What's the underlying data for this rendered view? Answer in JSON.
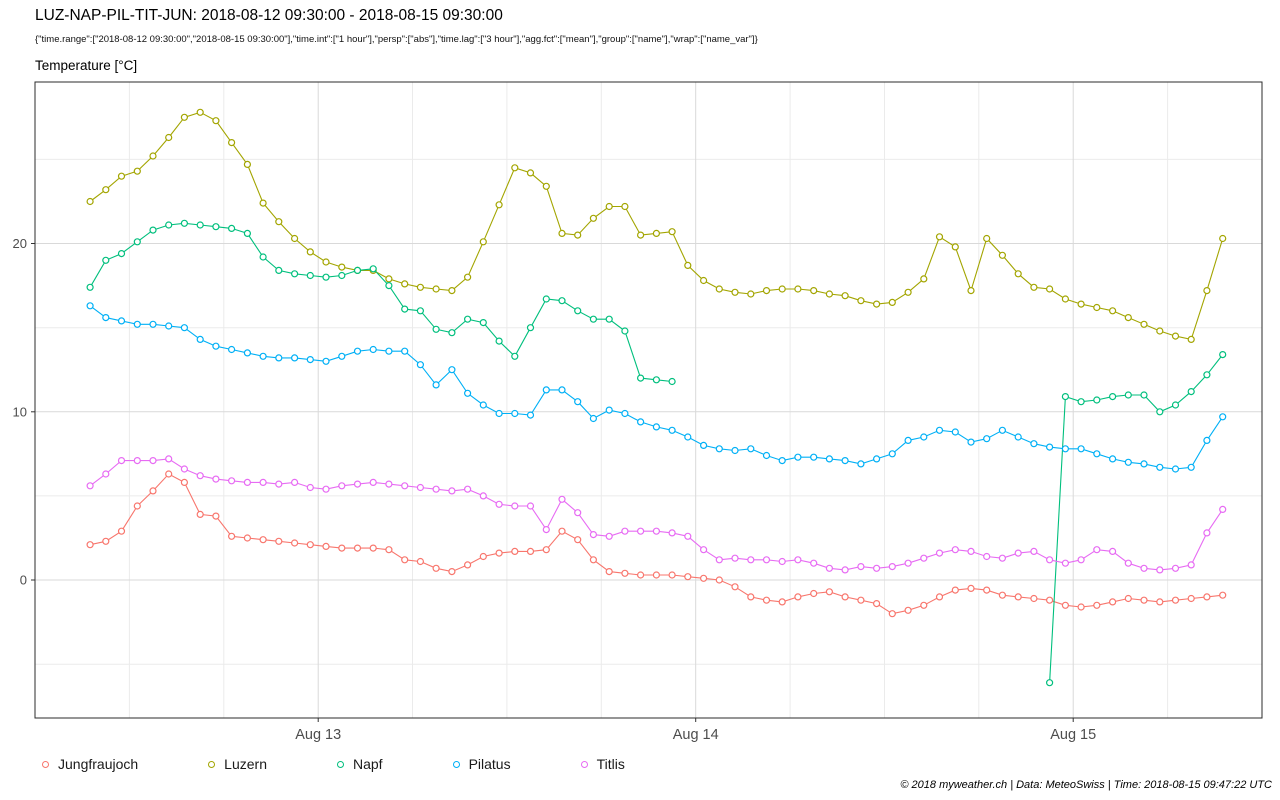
{
  "header": {
    "title": "LUZ-NAP-PIL-TIT-JUN: 2018-08-12 09:30:00 - 2018-08-15 09:30:00",
    "subtitle": "{\"time.range\":[\"2018-08-12 09:30:00\",\"2018-08-15 09:30:00\"],\"time.int\":[\"1 hour\"],\"persp\":[\"abs\"],\"time.lag\":[\"3 hour\"],\"agg.fct\":[\"mean\"],\"group\":[\"name\"],\"wrap\":[\"name_var\"]}"
  },
  "footer": "© 2018 myweather.ch | Data: MeteoSwiss | Time: 2018-08-15 09:47:22 UTC",
  "chart_data": {
    "type": "line",
    "title": "LUZ-NAP-PIL-TIT-JUN: 2018-08-12 09:30:00 - 2018-08-15 09:30:00",
    "ylabel": "Temperature [°C]",
    "x_unit": "hours since 2018-08-12 09:30",
    "x_range": [
      -3.5,
      74.5
    ],
    "y_range": [
      -8.2,
      29.6
    ],
    "grid": true,
    "legend_position": "bottom",
    "grid_major_color": "#d9d9d9",
    "grid_minor_color": "#ebebeb",
    "x_ticks": [
      {
        "hour": 14.5,
        "label": "Aug 13"
      },
      {
        "hour": 38.5,
        "label": "Aug 14"
      },
      {
        "hour": 62.5,
        "label": "Aug 15"
      }
    ],
    "x_minor_hours": [
      2.5,
      8.5,
      20.5,
      26.5,
      32.5,
      44.5,
      50.5,
      56.5,
      68.5
    ],
    "y_ticks": [
      {
        "value": 0,
        "label": "0"
      },
      {
        "value": 10,
        "label": "10"
      },
      {
        "value": 20,
        "label": "20"
      }
    ],
    "y_minor": [
      -5,
      5,
      15,
      25
    ],
    "marker": "open-circle",
    "series": [
      {
        "id": "jungfraujoch",
        "name": "Jungfraujoch",
        "color": "#F8766D",
        "values": [
          2.1,
          2.3,
          2.9,
          4.4,
          5.3,
          6.3,
          5.8,
          3.9,
          3.8,
          2.6,
          2.5,
          2.4,
          2.3,
          2.2,
          2.1,
          2.0,
          1.9,
          1.9,
          1.9,
          1.8,
          1.2,
          1.1,
          0.7,
          0.5,
          0.9,
          1.4,
          1.6,
          1.7,
          1.7,
          1.8,
          2.9,
          2.4,
          1.2,
          0.5,
          0.4,
          0.3,
          0.3,
          0.3,
          0.2,
          0.1,
          0.0,
          -0.4,
          -1.0,
          -1.2,
          -1.3,
          -1.0,
          -0.8,
          -0.7,
          -1.0,
          -1.2,
          -1.4,
          -2.0,
          -1.8,
          -1.5,
          -1.0,
          -0.6,
          -0.5,
          -0.6,
          -0.9,
          -1.0,
          -1.1,
          -1.2,
          -1.5,
          -1.6,
          -1.5,
          -1.3,
          -1.1,
          -1.2,
          -1.3,
          -1.2,
          -1.1,
          -1.0,
          -0.9
        ]
      },
      {
        "id": "luzern",
        "name": "Luzern",
        "color": "#A3A500",
        "values": [
          22.5,
          23.2,
          24.0,
          24.3,
          25.2,
          26.3,
          27.5,
          27.8,
          27.3,
          26.0,
          24.7,
          22.4,
          21.3,
          20.3,
          19.5,
          18.9,
          18.6,
          18.4,
          18.4,
          17.9,
          17.6,
          17.4,
          17.3,
          17.2,
          18.0,
          20.1,
          22.3,
          24.5,
          24.2,
          23.4,
          20.6,
          20.5,
          21.5,
          22.2,
          22.2,
          20.5,
          20.6,
          20.7,
          18.7,
          17.8,
          17.3,
          17.1,
          17.0,
          17.2,
          17.3,
          17.3,
          17.2,
          17.0,
          16.9,
          16.6,
          16.4,
          16.5,
          17.1,
          17.9,
          20.4,
          19.8,
          17.2,
          20.3,
          19.3,
          18.2,
          17.4,
          17.3,
          16.7,
          16.4,
          16.2,
          16.0,
          15.6,
          15.2,
          14.8,
          14.5,
          14.3,
          17.2,
          20.3
        ]
      },
      {
        "id": "napf",
        "name": "Napf",
        "color": "#00BF7D",
        "values": [
          17.4,
          19.0,
          19.4,
          20.1,
          20.8,
          21.1,
          21.2,
          21.1,
          21.0,
          20.9,
          20.6,
          19.2,
          18.4,
          18.2,
          18.1,
          18.0,
          18.1,
          18.4,
          18.5,
          17.5,
          16.1,
          16.0,
          14.9,
          14.7,
          15.5,
          15.3,
          14.2,
          13.3,
          15.0,
          16.7,
          16.6,
          16.0,
          15.5,
          15.5,
          14.8,
          12.0,
          11.9,
          11.8,
          null,
          null,
          null,
          null,
          null,
          null,
          null,
          null,
          null,
          null,
          null,
          null,
          null,
          null,
          null,
          null,
          null,
          null,
          null,
          null,
          null,
          null,
          null,
          -6.1,
          10.9,
          10.6,
          10.7,
          10.9,
          11.0,
          11.0,
          10.0,
          10.4,
          11.2,
          12.2,
          13.4
        ]
      },
      {
        "id": "pilatus",
        "name": "Pilatus",
        "color": "#00B0F6",
        "values": [
          16.3,
          15.6,
          15.4,
          15.2,
          15.2,
          15.1,
          15.0,
          14.3,
          13.9,
          13.7,
          13.5,
          13.3,
          13.2,
          13.2,
          13.1,
          13.0,
          13.3,
          13.6,
          13.7,
          13.6,
          13.6,
          12.8,
          11.6,
          12.5,
          11.1,
          10.4,
          9.9,
          9.9,
          9.8,
          11.3,
          11.3,
          10.6,
          9.6,
          10.1,
          9.9,
          9.4,
          9.1,
          8.9,
          8.5,
          8.0,
          7.8,
          7.7,
          7.8,
          7.4,
          7.1,
          7.3,
          7.3,
          7.2,
          7.1,
          6.9,
          7.2,
          7.5,
          8.3,
          8.5,
          8.9,
          8.8,
          8.2,
          8.4,
          8.9,
          8.5,
          8.1,
          7.9,
          7.8,
          7.8,
          7.5,
          7.2,
          7.0,
          6.9,
          6.7,
          6.6,
          6.7,
          8.3,
          9.7
        ]
      },
      {
        "id": "titlis",
        "name": "Titlis",
        "color": "#E76BF3",
        "values": [
          5.6,
          6.3,
          7.1,
          7.1,
          7.1,
          7.2,
          6.6,
          6.2,
          6.0,
          5.9,
          5.8,
          5.8,
          5.7,
          5.8,
          5.5,
          5.4,
          5.6,
          5.7,
          5.8,
          5.7,
          5.6,
          5.5,
          5.4,
          5.3,
          5.4,
          5.0,
          4.5,
          4.4,
          4.4,
          3.0,
          4.8,
          4.0,
          2.7,
          2.6,
          2.9,
          2.9,
          2.9,
          2.8,
          2.6,
          1.8,
          1.2,
          1.3,
          1.2,
          1.2,
          1.1,
          1.2,
          1.0,
          0.7,
          0.6,
          0.8,
          0.7,
          0.8,
          1.0,
          1.3,
          1.6,
          1.8,
          1.7,
          1.4,
          1.3,
          1.6,
          1.7,
          1.2,
          1.0,
          1.2,
          1.8,
          1.7,
          1.0,
          0.7,
          0.6,
          0.7,
          0.9,
          2.8,
          4.2
        ]
      }
    ]
  }
}
